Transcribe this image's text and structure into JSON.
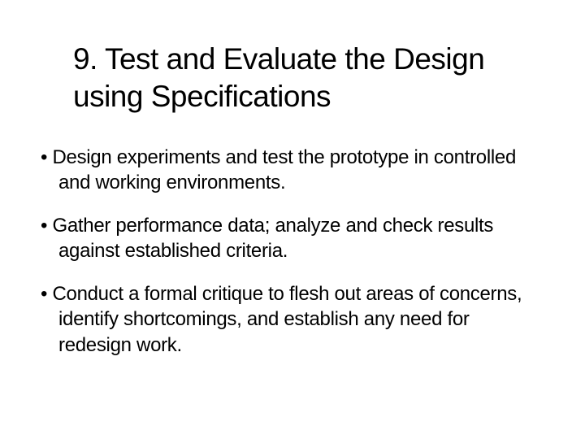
{
  "slide": {
    "title": "9. Test and Evaluate the Design using Specifications",
    "bullets": [
      "Design experiments and test the prototype in controlled and working environments.",
      "Gather performance data; analyze and check results against established criteria.",
      "Conduct a formal critique to flesh out areas of concerns, identify shortcomings, and establish any need for redesign work."
    ]
  },
  "styling": {
    "background_color": "#ffffff",
    "text_color": "#000000",
    "title_fontsize": 37,
    "bullet_fontsize": 24,
    "font_family": "Arial"
  }
}
